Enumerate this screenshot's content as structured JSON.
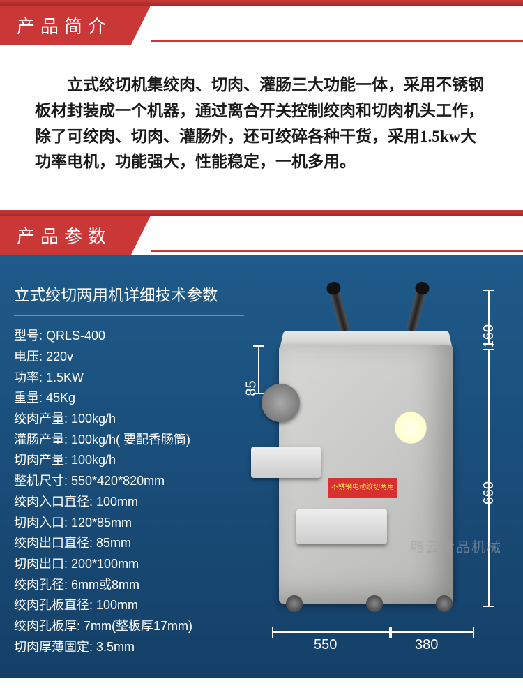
{
  "sections": {
    "intro_header": "产品简介",
    "params_header": "产品参数"
  },
  "intro": {
    "text": "立式绞切机集绞肉、切肉、灌肠三大功能一体，采用不锈钢板材封装成一个机器，通过离合开关控制绞肉和切肉机头工作，除了可绞肉、切肉、灌肠外，还可绞碎各种干货，采用1.5kw大功率电机，功能强大，性能稳定，一机多用。",
    "font_family": "KaiTi",
    "font_size": 23,
    "color": "#1a1a1a"
  },
  "spec": {
    "title": "立式绞切两用机详细技术参数",
    "rows": [
      {
        "label": "型号",
        "value": "QRLS-400"
      },
      {
        "label": "电压",
        "value": "220v"
      },
      {
        "label": "功率",
        "value": "1.5KW"
      },
      {
        "label": "重量",
        "value": "45Kg"
      },
      {
        "label": "绞肉产量",
        "value": "100kg/h"
      },
      {
        "label": "灌肠产量",
        "value": "100kg/h( 要配香肠筒)"
      },
      {
        "label": "切肉产量",
        "value": "100kg/h"
      },
      {
        "label": "整机尺寸",
        "value": "550*420*820mm"
      },
      {
        "label": "绞肉入口直径",
        "value": "100mm"
      },
      {
        "label": "切肉入口",
        "value": "120*85mm"
      },
      {
        "label": "绞肉出口直径",
        "value": "85mm"
      },
      {
        "label": "切肉出口",
        "value": "200*100mm"
      },
      {
        "label": "绞肉孔径",
        "value": "6mm或8mm"
      },
      {
        "label": "绞肉孔板直径",
        "value": "100mm"
      },
      {
        "label": "绞肉孔板厚",
        "value": "7mm(整板厚17mm)"
      },
      {
        "label": "切肉厚薄固定",
        "value": "3.5mm"
      }
    ],
    "title_fontsize": 22.5,
    "row_fontsize": 18,
    "text_color": "#ffffff",
    "background_color": "#1a4e7a"
  },
  "dimensions": {
    "left_height": "85",
    "bottom_width1": "550",
    "bottom_width2": "380",
    "right_height1": "160",
    "right_height2": "660"
  },
  "machine": {
    "body_color": "#d8d8d6",
    "label_text": "不锈钢电动绞切两用",
    "label_bg": "#d63030",
    "label_color": "#fff04a"
  },
  "watermark": "赣云食品机械",
  "colors": {
    "header_red": "#c93737",
    "spec_bg": "#1a4e7a",
    "white": "#ffffff"
  }
}
